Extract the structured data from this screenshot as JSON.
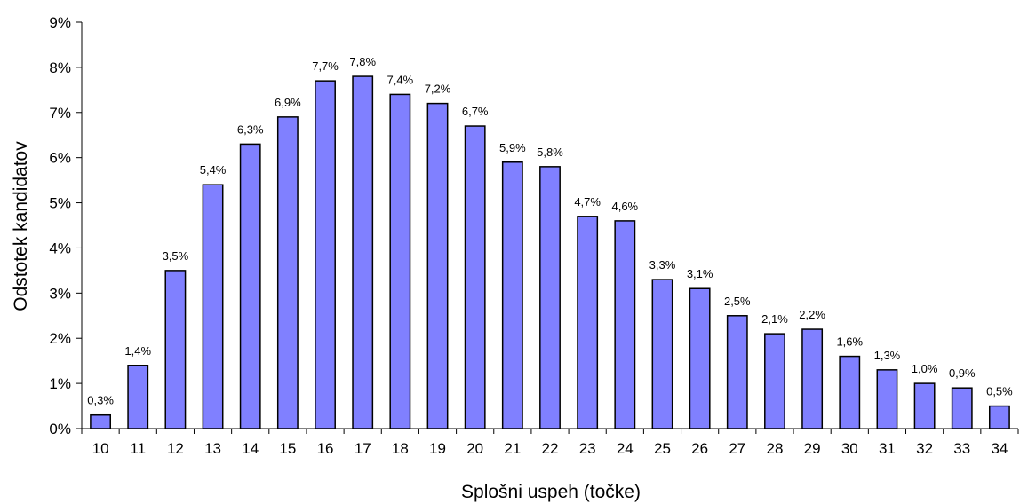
{
  "chart_data": {
    "type": "bar",
    "title": "",
    "xlabel": "Splošni uspeh (točke)",
    "ylabel": "Odstotek kandidatov",
    "categories": [
      "10",
      "11",
      "12",
      "13",
      "14",
      "15",
      "16",
      "17",
      "18",
      "19",
      "20",
      "21",
      "22",
      "23",
      "24",
      "25",
      "26",
      "27",
      "28",
      "29",
      "30",
      "31",
      "32",
      "33",
      "34"
    ],
    "values": [
      0.3,
      1.4,
      3.5,
      5.4,
      6.3,
      6.9,
      7.7,
      7.8,
      7.4,
      7.2,
      6.7,
      5.9,
      5.8,
      4.7,
      4.6,
      3.3,
      3.1,
      2.5,
      2.1,
      2.2,
      1.6,
      1.3,
      1.0,
      0.9,
      0.5
    ],
    "data_labels": [
      "0,3%",
      "1,4%",
      "3,5%",
      "5,4%",
      "6,3%",
      "6,9%",
      "7,7%",
      "7,8%",
      "7,4%",
      "7,2%",
      "6,7%",
      "5,9%",
      "5,8%",
      "4,7%",
      "4,6%",
      "3,3%",
      "3,1%",
      "2,5%",
      "2,1%",
      "2,2%",
      "1,6%",
      "1,3%",
      "1,0%",
      "0,9%",
      "0,5%"
    ],
    "ylim": [
      0,
      9
    ],
    "yticks": [
      "0%",
      "1%",
      "2%",
      "3%",
      "4%",
      "5%",
      "6%",
      "7%",
      "8%",
      "9%"
    ],
    "grid": false,
    "legend": "none",
    "colors": {
      "bar_fill": "#8080ff",
      "bar_stroke": "#000000",
      "axis": "#000000"
    }
  }
}
